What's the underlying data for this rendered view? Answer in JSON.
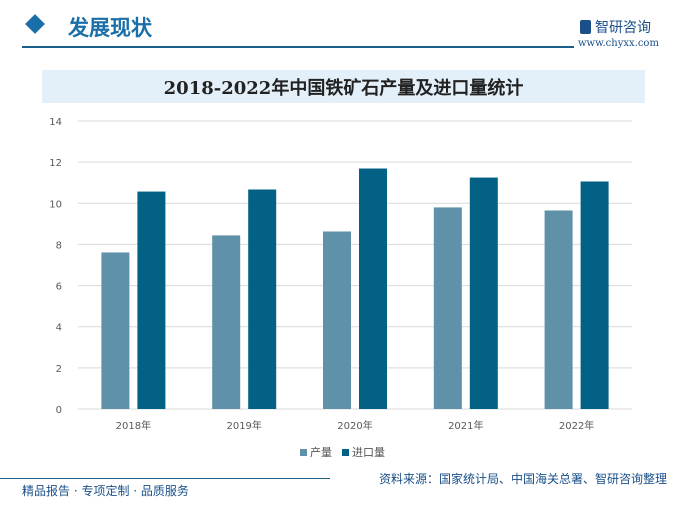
{
  "header": {
    "section_title": "发展现状",
    "logo_text": "智研咨询",
    "url": "www.chyxx.com"
  },
  "colors": {
    "accent": "#1a6fa8",
    "production": "#5f91a8",
    "import": "#036185"
  },
  "chart_data": {
    "type": "bar",
    "title": "2018-2022年中国铁矿石产量及进口量统计",
    "categories": [
      "2018年",
      "2019年",
      "2020年",
      "2021年",
      "2022年"
    ],
    "series": [
      {
        "name": "产量",
        "values": [
          7.61,
          8.44,
          8.63,
          9.8,
          9.65
        ]
      },
      {
        "name": "进口量",
        "values": [
          10.57,
          10.67,
          11.69,
          11.25,
          11.06
        ]
      }
    ],
    "ylim": [
      0,
      14
    ],
    "yticks": [
      "0",
      "2",
      "4",
      "6",
      "8",
      "10",
      "12",
      "14"
    ],
    "grid": true,
    "legend": "bottom"
  },
  "footer": {
    "source": "资料来源：国家统计局、中国海关总署、智研咨询整理",
    "tagline": "精品报告 · 专项定制 · 品质服务"
  }
}
